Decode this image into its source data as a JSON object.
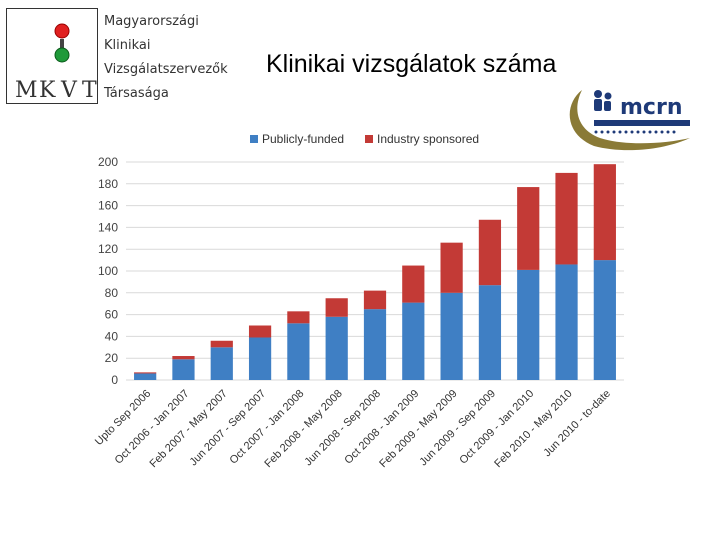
{
  "header": {
    "org_lines": [
      "Magyarországi",
      "Klinikai",
      "Vizsgálatszervezők",
      "Társasága"
    ],
    "logo_letters": [
      "M",
      "K",
      "V",
      "T"
    ],
    "title": "Klinikai vizsgálatok száma",
    "right_logo_text": "mcrn"
  },
  "chart_data": {
    "type": "bar",
    "stacked": true,
    "title": "",
    "xlabel": "",
    "ylabel": "",
    "ylim": [
      0,
      200
    ],
    "yticks": [
      0,
      20,
      40,
      60,
      80,
      100,
      120,
      140,
      160,
      180,
      200
    ],
    "grid": true,
    "legend": "top",
    "categories": [
      "Upto Sep 2006",
      "Oct 2006 - Jan 2007",
      "Feb 2007 - May 2007",
      "Jun 2007 - Sep 2007",
      "Oct 2007 - Jan 2008",
      "Feb 2008 - May 2008",
      "Jun 2008 - Sep 2008",
      "Oct 2008 - Jan 2009",
      "Feb 2009 - May 2009",
      "Jun 2009 - Sep 2009",
      "Oct 2009 - Jan 2010",
      "Feb 2010 - May 2010",
      "Jun 2010 - to-date"
    ],
    "series": [
      {
        "name": "Publicly-funded",
        "color": "#3f7fc4",
        "values": [
          6,
          19,
          30,
          39,
          52,
          58,
          65,
          71,
          80,
          87,
          101,
          106,
          110
        ]
      },
      {
        "name": "Industry sponsored",
        "color": "#c33a36",
        "values": [
          1,
          3,
          6,
          11,
          11,
          17,
          17,
          34,
          46,
          60,
          76,
          84,
          88
        ]
      }
    ]
  }
}
